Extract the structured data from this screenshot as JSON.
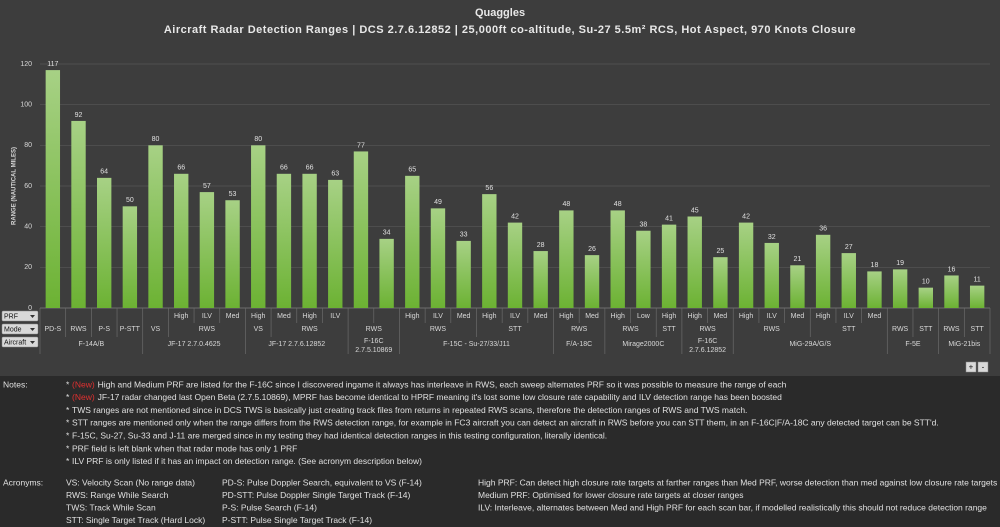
{
  "chart_data": {
    "type": "bar",
    "title": "Quaggles",
    "subtitle": "Aircraft Radar Detection Ranges | DCS 2.7.6.12852 | 25,000ft co-altitude, Su-27 5.5m² RCS, Hot Aspect, 970 Knots Closure",
    "y_label": "RANGE (NAUTICAL MILES)",
    "ylim": [
      0,
      120
    ],
    "yticks": [
      0,
      20,
      40,
      60,
      80,
      100,
      120
    ],
    "grid": true,
    "color": "#6cb233",
    "row_fields": [
      "PRF",
      "Mode",
      "Aircraft"
    ],
    "groups": [
      {
        "label": "F-14A/B",
        "modes": [
          {
            "label": "PD-S",
            "prf": [
              null
            ]
          },
          {
            "label": "RWS",
            "prf": [
              null
            ]
          },
          {
            "label": "P-S",
            "prf": [
              null
            ]
          },
          {
            "label": "P-STT",
            "prf": [
              null
            ]
          }
        ]
      },
      {
        "label": "JF-17 2.7.0.4625",
        "modes": [
          {
            "label": "VS",
            "prf": [
              null
            ]
          },
          {
            "label": "RWS",
            "prf": [
              "High",
              "ILV",
              "Med"
            ]
          }
        ]
      },
      {
        "label": "JF-17 2.7.6.12852",
        "modes": [
          {
            "label": "VS",
            "prf": [
              "High"
            ]
          },
          {
            "label": "RWS",
            "prf": [
              "Med",
              "High",
              "ILV"
            ]
          }
        ]
      },
      {
        "label": [
          "F-16C",
          "2.7.5.10869"
        ],
        "modes": [
          {
            "label": "RWS",
            "prf": [
              null,
              null
            ]
          }
        ]
      },
      {
        "label": "F-15C - Su-27/33/J11",
        "modes": [
          {
            "label": "RWS",
            "prf": [
              "High",
              "ILV",
              "Med"
            ]
          },
          {
            "label": "STT",
            "prf": [
              "High",
              "ILV",
              "Med"
            ]
          }
        ]
      },
      {
        "label": "F/A-18C",
        "modes": [
          {
            "label": "RWS",
            "prf": [
              "High",
              "Med"
            ]
          }
        ]
      },
      {
        "label": "Mirage2000C",
        "modes": [
          {
            "label": "RWS",
            "prf": [
              "High",
              "Low"
            ]
          },
          {
            "label": "STT",
            "prf": [
              "High"
            ]
          }
        ]
      },
      {
        "label": [
          "F-16C",
          "2.7.6.12852"
        ],
        "modes": [
          {
            "label": "RWS",
            "prf": [
              "High",
              "Med"
            ]
          }
        ]
      },
      {
        "label": "MiG-29A/G/S",
        "modes": [
          {
            "label": "RWS",
            "prf": [
              "High",
              "ILV",
              "Med"
            ]
          },
          {
            "label": "STT",
            "prf": [
              "High",
              "ILV",
              "Med"
            ]
          }
        ]
      },
      {
        "label": "F-5E",
        "modes": [
          {
            "label": "RWS",
            "prf": [
              null
            ]
          },
          {
            "label": "STT",
            "prf": [
              null
            ]
          }
        ]
      },
      {
        "label": "MiG-21bis",
        "modes": [
          {
            "label": "RWS",
            "prf": [
              null
            ]
          },
          {
            "label": "STT",
            "prf": [
              null
            ]
          }
        ]
      }
    ],
    "values": [
      117,
      92,
      64,
      50,
      80,
      66,
      57,
      53,
      80,
      66,
      66,
      63,
      77,
      34,
      65,
      49,
      33,
      56,
      42,
      28,
      48,
      26,
      48,
      38,
      41,
      45,
      25,
      42,
      32,
      21,
      36,
      27,
      18,
      19,
      10,
      16,
      11
    ]
  },
  "zoom_buttons": [
    "+",
    "-"
  ],
  "notes": {
    "heading": "Notes:",
    "bullet": "*",
    "items": [
      {
        "tag": "(New)",
        "text": "High and Medium PRF are listed for the F-16C since I discovered ingame it always has interleave in RWS, each sweep alternates PRF so it was possible to measure the range of each"
      },
      {
        "tag": "(New)",
        "text": "JF-17 radar changed last Open Beta (2.7.5.10869), MPRF has become identical to HPRF meaning it's lost some low closure rate capability and ILV detection range has been boosted"
      },
      {
        "text": "TWS ranges are not mentioned since in DCS TWS is basically just creating track files from returns in repeated RWS scans, therefore the detection ranges of RWS and TWS match."
      },
      {
        "text": "STT ranges are mentioned only when the range differs from the RWS detection range, for example in FC3 aircraft you can detect an aircraft in RWS before you can STT them, in an F-16C|F/A-18C any detected target can be STT'd."
      },
      {
        "text": "F-15C, Su-27, Su-33 and J-11 are merged since in my testing they had identical detection ranges in this testing configuration, literally identical."
      },
      {
        "text": "PRF field is left blank when that radar mode has only 1 PRF"
      },
      {
        "text": "ILV PRF is only listed if it has an impact on detection range. (See acronym description below)"
      }
    ]
  },
  "acronyms": {
    "heading": "Acronyms:",
    "columns": [
      [
        "VS: Velocity Scan (No range data)",
        "RWS: Range While Search",
        "TWS: Track While Scan",
        "STT: Single Target Track (Hard Lock)"
      ],
      [
        "PD-S: Pulse Doppler Search, equivalent to VS (F-14)",
        "PD-STT: Pulse Doppler Single Target Track (F-14)",
        "P-S: Pulse Search (F-14)",
        "P-STT: Pulse Single Target Track (F-14)"
      ],
      [
        "High PRF: Can detect high closure rate targets at farther ranges than Med PRF, worse detection than med against low closure rate targets",
        "Medium PRF: Optimised for lower closure rate targets at closer ranges",
        "ILV: Interleave, alternates between Med and High PRF for each scan bar, if modelled realistically this should not reduce detection range"
      ]
    ]
  }
}
